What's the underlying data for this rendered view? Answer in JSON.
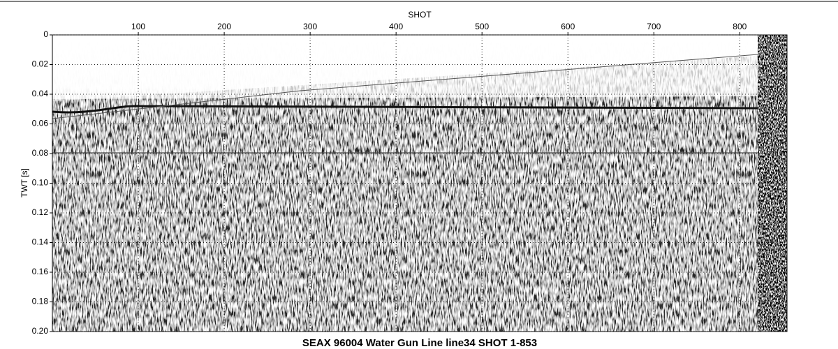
{
  "chart_data": {
    "type": "seismic",
    "title": "SEAX 96004 Water Gun Line line34 SHOT 1-853",
    "xlabel": "SHOT",
    "ylabel": "TWT [s]",
    "xlim": [
      0,
      855
    ],
    "xticks": [
      100,
      200,
      300,
      400,
      500,
      600,
      700,
      800
    ],
    "ylim": [
      0,
      0.2
    ],
    "yticks": [
      0,
      0.02,
      0.04,
      0.06,
      0.08,
      {
        "value": 0.1,
        "label": "0.10"
      },
      0.12,
      0.14,
      0.16,
      0.18,
      {
        "value": 0.2,
        "label": "0.20"
      }
    ],
    "grid": true
  }
}
